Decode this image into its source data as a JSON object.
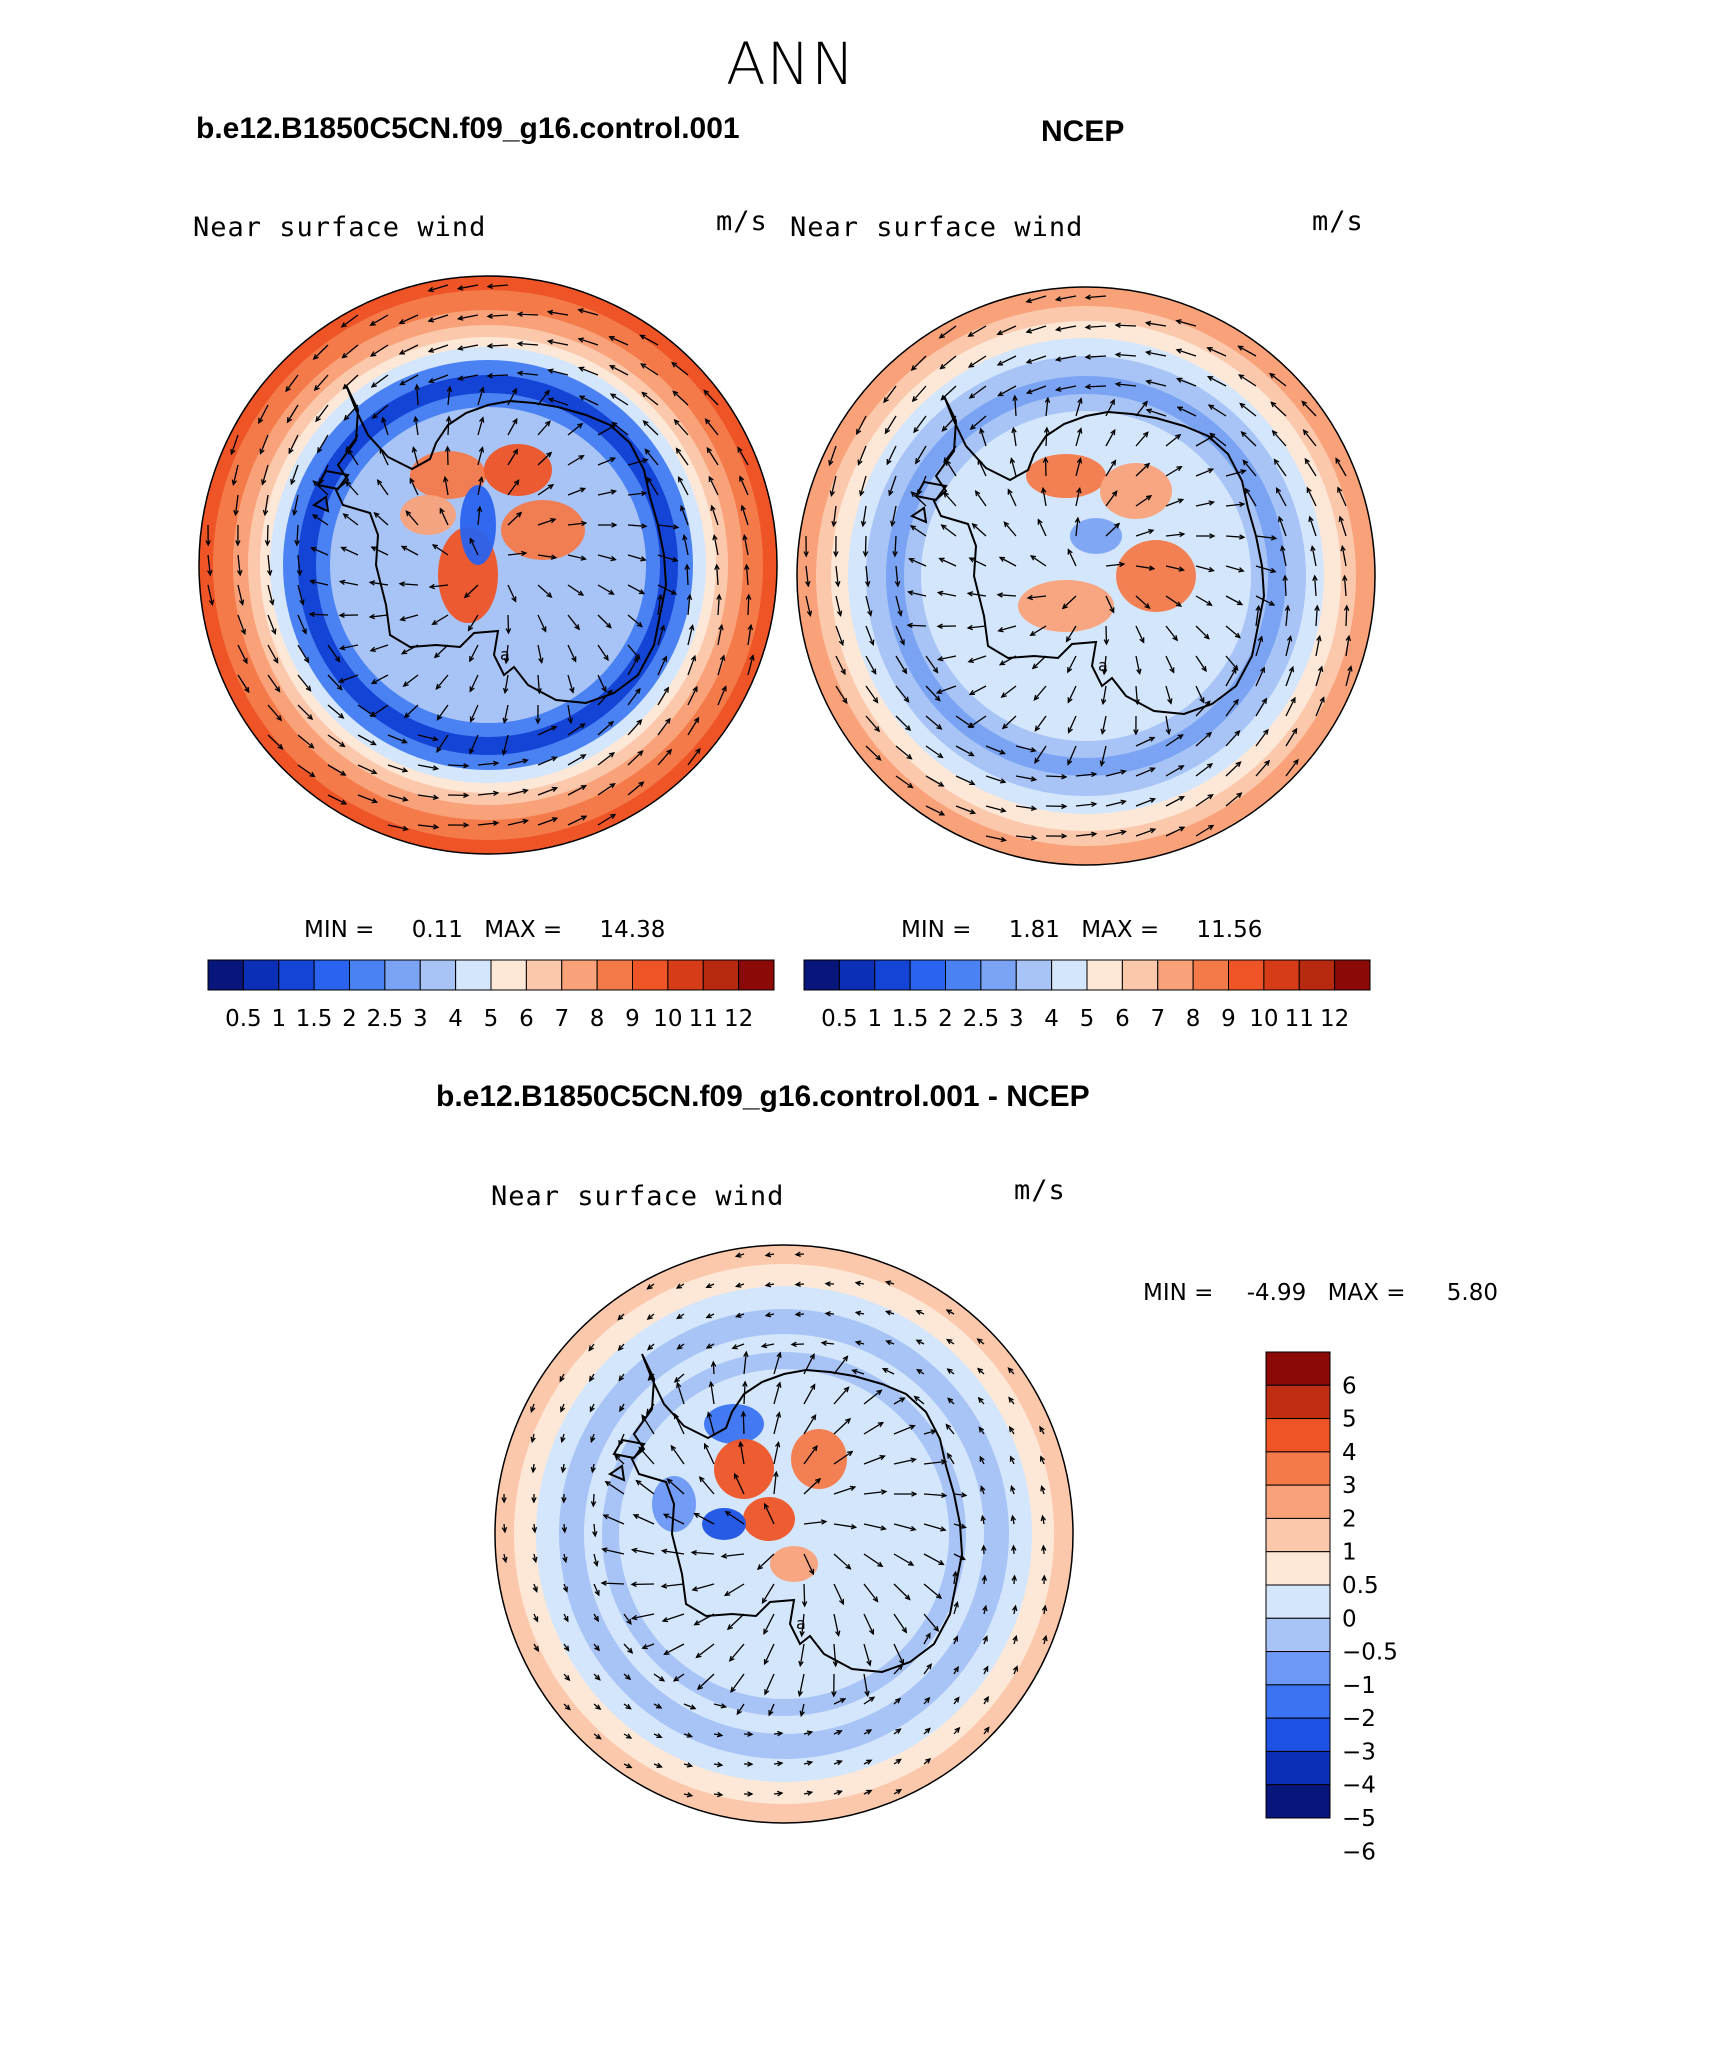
{
  "page_title": "ANN",
  "panels": [
    {
      "title": "b.e12.B1850C5CN.f09_g16.control.001",
      "variable": "Near surface wind",
      "units": "m/s",
      "min_label": "MIN =",
      "min_value": "0.11",
      "max_label": "MAX =",
      "max_value": "14.38",
      "style": "model"
    },
    {
      "title": "NCEP",
      "variable": "Near surface wind",
      "units": "m/s",
      "min_label": "MIN =",
      "min_value": "1.81",
      "max_label": "MAX =",
      "max_value": "11.56",
      "style": "obs"
    },
    {
      "title": "b.e12.B1850C5CN.f09_g16.control.001 - NCEP",
      "variable": "Near surface wind",
      "units": "m/s",
      "min_label": "MIN =",
      "min_value": "-4.99",
      "max_label": "MAX =",
      "max_value": "5.80",
      "style": "diff"
    }
  ],
  "colorbar_abs": {
    "colors": [
      "#08157a",
      "#0b2fb6",
      "#1444d6",
      "#2a63ef",
      "#4a82f3",
      "#7aa3f3",
      "#a8c4f6",
      "#d4e6fb",
      "#fde8d8",
      "#fcc8ac",
      "#f9a27a",
      "#f47a4a",
      "#ef5426",
      "#d63c17",
      "#b72a10",
      "#8b0a08"
    ],
    "ticks": [
      "0.5",
      "1",
      "1.5",
      "2",
      "2.5",
      "3",
      "4",
      "5",
      "6",
      "7",
      "8",
      "9",
      "10",
      "11",
      "12"
    ]
  },
  "colorbar_diff": {
    "colors": [
      "#08157a",
      "#0b2fb6",
      "#1d52e4",
      "#3b74f2",
      "#6e98f5",
      "#a8c4f6",
      "#d4e6fb",
      "#fde8d8",
      "#fcc8ac",
      "#f9a27a",
      "#f47a4a",
      "#ef5426",
      "#c02e12",
      "#8b0a08"
    ],
    "ticks": [
      "6",
      "5",
      "4",
      "3",
      "2",
      "1",
      "0.5",
      "0",
      "-0.5",
      "-1",
      "-2",
      "-3",
      "-4",
      "-5",
      "-6"
    ]
  },
  "coastline_label": "a"
}
